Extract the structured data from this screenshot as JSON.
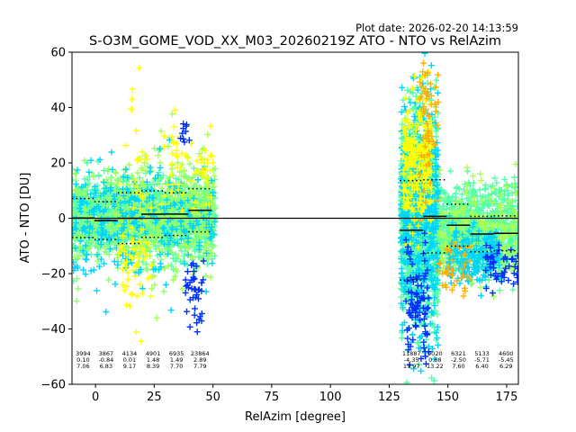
{
  "chart_data": {
    "type": "scatter",
    "plot_date": "Plot date: 2026-02-20 14:13:59",
    "title": "S-O3M_GOME_VOD_XX_M03_20260219Z ATO - NTO vs RelAzim",
    "xlabel": "RelAzim [degree]",
    "ylabel": "ATO - NTO [DU]",
    "xlim": [
      -10,
      180
    ],
    "ylim": [
      -60,
      60
    ],
    "xticks": [
      0,
      25,
      50,
      75,
      100,
      125,
      150,
      175
    ],
    "yticks": [
      -60,
      -40,
      -20,
      0,
      20,
      40,
      60
    ],
    "grid": false,
    "marker": "+",
    "zero_line": 0,
    "colors": {
      "dense": "#55ffa8",
      "mid": "#a8ff55",
      "light_green": "#90ff70",
      "yellow": "#ffff00",
      "orange": "#ffb000",
      "cyan": "#00d4ff",
      "blue": "#0030ff",
      "line": "#000000"
    },
    "bins": [
      {
        "x0": -10,
        "x1": -0.5,
        "n": "3994",
        "mean": "0.10",
        "std": "7.06",
        "meanv": 0.1,
        "stdv": 7.06
      },
      {
        "x0": -0.5,
        "x1": 9.5,
        "n": "3867",
        "mean": "-0.84",
        "std": "6.83",
        "meanv": -0.84,
        "stdv": 6.83
      },
      {
        "x0": 9.5,
        "x1": 19.5,
        "n": "4134",
        "mean": "0.01",
        "std": "9.17",
        "meanv": 0.01,
        "stdv": 9.17
      },
      {
        "x0": 19.5,
        "x1": 29.5,
        "n": "4901",
        "mean": "1.48",
        "std": "8.39",
        "meanv": 1.48,
        "stdv": 8.39
      },
      {
        "x0": 29.5,
        "x1": 39.5,
        "n": "6935",
        "mean": "1.49",
        "std": "7.70",
        "meanv": 1.49,
        "stdv": 7.7
      },
      {
        "x0": 39.5,
        "x1": 49.5,
        "n": "23864",
        "mean": "2.89",
        "std": "7.79",
        "meanv": 2.89,
        "stdv": 7.79
      },
      {
        "x0": 129.5,
        "x1": 139.5,
        "n": "11887",
        "mean": "-4.35",
        "std": "17.97",
        "meanv": -4.35,
        "stdv": 17.97
      },
      {
        "x0": 139.5,
        "x1": 149.5,
        "n": "9020",
        "mean": "0.68",
        "std": "13.22",
        "meanv": 0.68,
        "stdv": 13.22
      },
      {
        "x0": 149.5,
        "x1": 159.5,
        "n": "6321",
        "mean": "-2.50",
        "std": "7.60",
        "meanv": -2.5,
        "stdv": 7.6
      },
      {
        "x0": 159.5,
        "x1": 169.5,
        "n": "5133",
        "mean": "-5.71",
        "std": "6.40",
        "meanv": -5.71,
        "stdv": 6.4
      },
      {
        "x0": 169.5,
        "x1": 180,
        "n": "4600",
        "mean": "-5.45",
        "std": "6.29",
        "meanv": -5.45,
        "stdv": 6.29
      }
    ]
  }
}
